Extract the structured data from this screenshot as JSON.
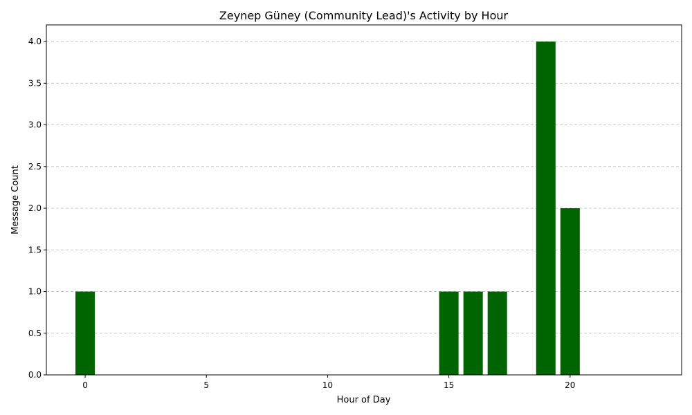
{
  "chart_data": {
    "type": "bar",
    "title": "Zeynep Güney (Community Lead)'s Activity by Hour",
    "xlabel": "Hour of Day",
    "ylabel": "Message Count",
    "x": [
      0,
      15,
      16,
      17,
      19,
      20
    ],
    "values": [
      1,
      1,
      1,
      1,
      4,
      2
    ],
    "xlim": [
      -1.6,
      24.6
    ],
    "ylim": [
      0,
      4.2
    ],
    "xticks": [
      0,
      5,
      10,
      15,
      20
    ],
    "yticks": [
      "0.0",
      "0.5",
      "1.0",
      "1.5",
      "2.0",
      "2.5",
      "3.0",
      "3.5",
      "4.0"
    ],
    "grid": "horizontal dashed",
    "bar_color": "#006400",
    "grid_color": "#c8c8c8"
  }
}
